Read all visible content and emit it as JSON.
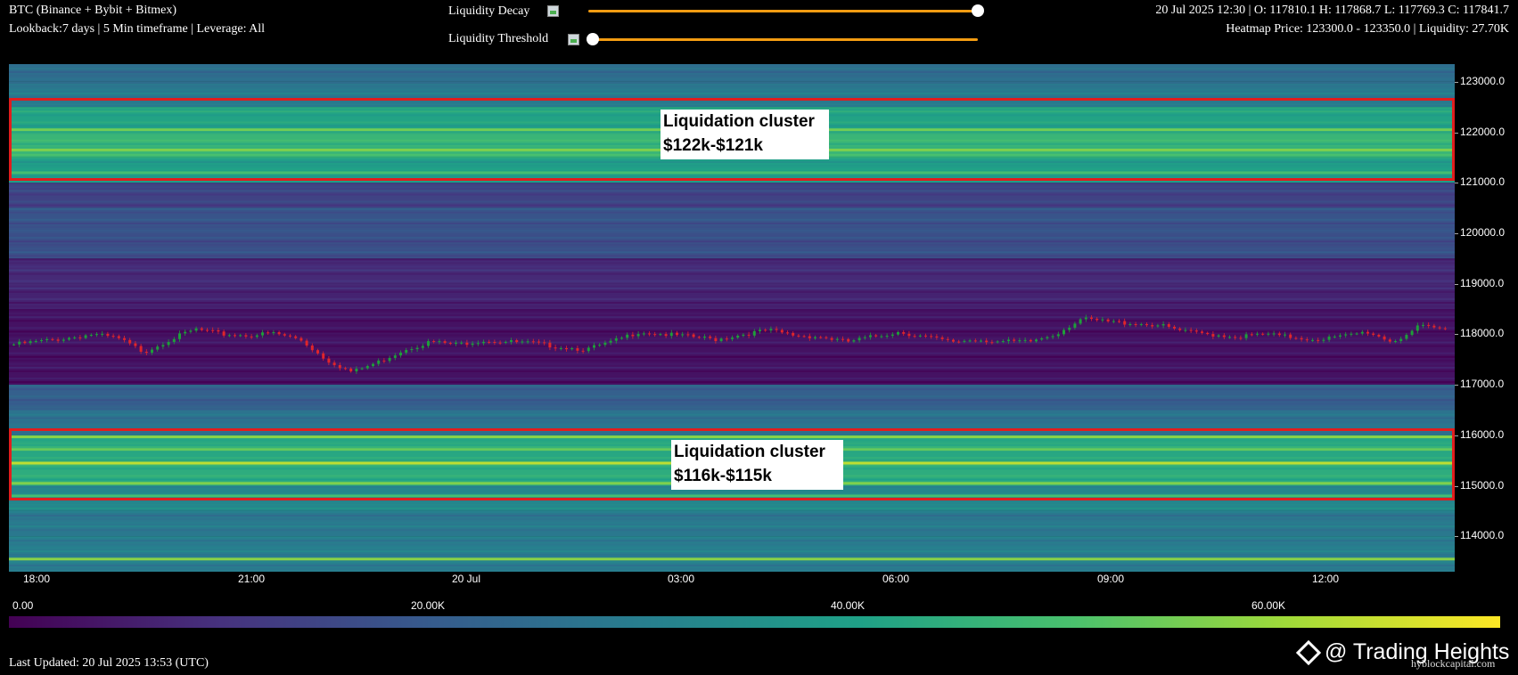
{
  "header": {
    "title": "BTC (Binance + Bybit + Bitmex)",
    "subtitle": "Lookback:7 days | 5 Min timeframe | Leverage: All",
    "ohlc": "20 Jul 2025 12:30 | O: 117810.1 H: 117868.7 L: 117769.3 C: 117841.7",
    "heatmap_info": "Heatmap Price: 123300.0 - 123350.0 | Liquidity: 27.70K"
  },
  "controls": {
    "decay_label": "Liquidity Decay",
    "decay_value": 1.0,
    "threshold_label": "Liquidity Threshold",
    "threshold_value": 0.0,
    "slider_color": "#f39c12"
  },
  "chart_data": {
    "type": "heatmap",
    "y_axis_ticks": [
      "123000.0",
      "122000.0",
      "121000.0",
      "120000.0",
      "119000.0",
      "118000.0",
      "117000.0",
      "116000.0",
      "115000.0",
      "114000.0"
    ],
    "x_axis_ticks": [
      "18:00",
      "21:00",
      "20 Jul",
      "03:00",
      "06:00",
      "09:00",
      "12:00"
    ],
    "ylim": [
      113300,
      123350
    ],
    "color_scale": {
      "ticks": [
        "0.00",
        "20.00K",
        "40.00K",
        "60.00K"
      ],
      "colormap": "viridis",
      "colors": [
        "#440154",
        "#46327e",
        "#365c8d",
        "#277f8e",
        "#1fa187",
        "#4ac16d",
        "#a0da39",
        "#fde725"
      ]
    },
    "bands": [
      {
        "low": 123000,
        "high": 123350,
        "level": 0.36
      },
      {
        "low": 122500,
        "high": 123000,
        "level": 0.4
      },
      {
        "low": 122000,
        "high": 122500,
        "level": 0.58
      },
      {
        "low": 121500,
        "high": 122000,
        "level": 0.66
      },
      {
        "low": 121000,
        "high": 121500,
        "level": 0.56
      },
      {
        "low": 120500,
        "high": 121000,
        "level": 0.2
      },
      {
        "low": 120000,
        "high": 120500,
        "level": 0.26
      },
      {
        "low": 119500,
        "high": 120000,
        "level": 0.24
      },
      {
        "low": 119000,
        "high": 119500,
        "level": 0.12
      },
      {
        "low": 118500,
        "high": 119000,
        "level": 0.1
      },
      {
        "low": 117000,
        "high": 118500,
        "level": 0.05
      },
      {
        "low": 116500,
        "high": 117000,
        "level": 0.3
      },
      {
        "low": 116000,
        "high": 116500,
        "level": 0.38
      },
      {
        "low": 115500,
        "high": 116000,
        "level": 0.6
      },
      {
        "low": 115000,
        "high": 115500,
        "level": 0.62
      },
      {
        "low": 114500,
        "high": 115000,
        "level": 0.46
      },
      {
        "low": 114000,
        "high": 114500,
        "level": 0.4
      },
      {
        "low": 113300,
        "high": 114000,
        "level": 0.42
      }
    ],
    "bright_lines": [
      {
        "price": 122050,
        "level": 0.78
      },
      {
        "price": 121650,
        "level": 0.8
      },
      {
        "price": 121200,
        "level": 0.7
      },
      {
        "price": 115970,
        "level": 0.82
      },
      {
        "price": 115720,
        "level": 0.76
      },
      {
        "price": 115450,
        "level": 0.9
      },
      {
        "price": 115050,
        "level": 0.8
      },
      {
        "price": 114800,
        "level": 0.7
      },
      {
        "price": 113550,
        "level": 0.82
      }
    ],
    "price_path": [
      117800,
      117860,
      117920,
      118000,
      117920,
      117650,
      117900,
      118100,
      118000,
      117980,
      118020,
      117900,
      117500,
      117250,
      117450,
      117700,
      117850,
      117800,
      117880,
      117850,
      117820,
      117750,
      117700,
      117850,
      118050,
      118000,
      117950,
      117900,
      118000,
      118080,
      117980,
      117950,
      117850,
      117950,
      118050,
      117950,
      117850,
      117900,
      117850,
      117850,
      118000,
      118300,
      118250,
      118220,
      118180,
      118050,
      118000,
      117950,
      118000,
      117950,
      117900,
      117950,
      118050,
      117850,
      118150,
      118100
    ]
  },
  "annotations": [
    {
      "line1": "Liquidation cluster",
      "line2": "$122k-$121k"
    },
    {
      "line1": "Liquidation cluster",
      "line2": "$116k-$115k"
    }
  ],
  "footer": {
    "last_updated": "Last Updated: 20 Jul 2025 13:53 (UTC)",
    "watermark": "@ Trading Heights",
    "source": "hyblockcapital.com"
  }
}
